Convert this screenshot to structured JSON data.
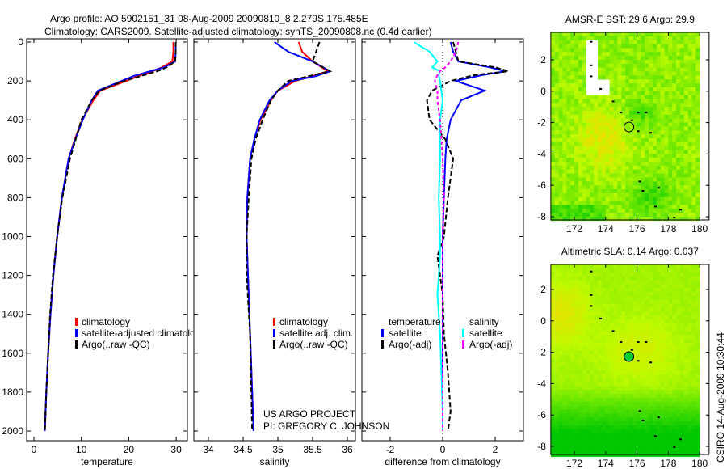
{
  "title": {
    "line1": "Argo profile: AO 5902151_31 08-Aug-2009 20090810_8 2.279S 175.485E",
    "line2": "Climatology: CARS2009. Satellite-adjusted climatology: synTS_20090808.nc (0.4d earlier)"
  },
  "credit": {
    "line1": "US ARGO PROJECT",
    "line2": "PI: GREGORY C. JOHNSON"
  },
  "stamp": "CSIRO 14-Aug-2009 10:30:44",
  "colors": {
    "climatology": "#ff0000",
    "satellite": "#0000ff",
    "argo": "#000000",
    "sal_satellite": "#00ffff",
    "sal_argo": "#ff00ff"
  },
  "chart_data": [
    {
      "type": "line",
      "xlabel": "temperature",
      "ylabel": "",
      "xlim": [
        -2,
        32
      ],
      "ylim": [
        2050,
        0
      ],
      "xticks": [
        "0",
        "10",
        "20",
        "30"
      ],
      "yticks": [
        "0",
        "200",
        "400",
        "600",
        "800",
        "1000",
        "1200",
        "1400",
        "1600",
        "1800",
        "2000"
      ],
      "legend": [
        "climatology",
        "satellite-adjusted climatolog",
        "Argo(..raw -QC)"
      ],
      "depth": [
        0,
        50,
        100,
        130,
        150,
        175,
        200,
        250,
        300,
        400,
        500,
        600,
        800,
        1000,
        1200,
        1400,
        1600,
        1800,
        2000
      ],
      "series": [
        {
          "name": "climatology",
          "values": [
            29.4,
            29.4,
            29.2,
            27,
            25,
            22,
            19.5,
            14,
            12.5,
            10.2,
            8.6,
            7.3,
            5.9,
            4.9,
            4.1,
            3.5,
            3.0,
            2.6,
            2.3
          ]
        },
        {
          "name": "satellite-adjusted climatology",
          "values": [
            29.9,
            29.9,
            29.8,
            27.5,
            24.5,
            21,
            18.5,
            13.5,
            12.2,
            10.3,
            8.7,
            7.3,
            5.9,
            4.9,
            4.1,
            3.5,
            3.0,
            2.6,
            2.3
          ]
        },
        {
          "name": "Argo",
          "values": [
            29.9,
            29.9,
            29.8,
            28,
            26,
            22.5,
            19,
            13.8,
            12.2,
            10,
            8.8,
            7.6,
            6.0,
            4.9,
            4.0,
            3.4,
            3.0,
            2.6,
            2.3
          ]
        }
      ]
    },
    {
      "type": "line",
      "xlabel": "salinity",
      "xlim": [
        33.8,
        36.1
      ],
      "ylim": [
        2050,
        0
      ],
      "xticks": [
        "34",
        "34.5",
        "35",
        "35.5",
        "36"
      ],
      "legend": [
        "climatology",
        "satellite adj. clim.",
        "Argo(..raw -QC)"
      ],
      "depth": [
        0,
        50,
        100,
        150,
        175,
        200,
        250,
        300,
        400,
        500,
        600,
        800,
        1000,
        1200,
        1500,
        2000
      ],
      "series": [
        {
          "name": "climatology",
          "values": [
            35.3,
            35.35,
            35.5,
            35.72,
            35.5,
            35.25,
            35.0,
            34.9,
            34.75,
            34.66,
            34.6,
            34.56,
            34.55,
            34.57,
            34.6,
            34.65
          ]
        },
        {
          "name": "satellite adj. clim.",
          "values": [
            34.95,
            35.15,
            35.5,
            35.75,
            35.55,
            35.2,
            35.0,
            34.88,
            34.74,
            34.66,
            34.6,
            34.56,
            34.55,
            34.57,
            34.6,
            34.65
          ]
        },
        {
          "name": "Argo",
          "values": [
            35.6,
            35.55,
            35.5,
            35.75,
            35.45,
            35.15,
            35.0,
            34.9,
            34.78,
            34.68,
            34.62,
            34.58,
            34.55,
            34.55,
            34.6,
            34.63
          ]
        }
      ]
    },
    {
      "type": "line",
      "xlabel": "difference from climatology",
      "xlim": [
        -3.2,
        3.2
      ],
      "ylim": [
        2050,
        0
      ],
      "xticks": [
        "-2",
        "0",
        "2"
      ],
      "legend": [
        "temperature",
        "satellite",
        "Argo(-adj)",
        "salinity",
        "satellite",
        "Argo(-adj)"
      ],
      "depth": [
        0,
        50,
        100,
        130,
        150,
        170,
        200,
        250,
        300,
        400,
        500,
        600,
        800,
        1000,
        1100,
        1300,
        1500,
        1700,
        1900,
        2000
      ],
      "series": [
        {
          "name": "temperature satellite",
          "values": [
            0.3,
            0.4,
            0.6,
            1.8,
            2.4,
            1.5,
            0.5,
            1.6,
            0.7,
            0.3,
            0.15,
            0.1,
            0.05,
            0,
            0,
            0,
            0,
            0,
            0,
            0
          ]
        },
        {
          "name": "temperature Argo(-adj)",
          "values": [
            0.4,
            0.5,
            0.6,
            2.0,
            2.5,
            1.2,
            0.3,
            -0.4,
            -0.6,
            -0.5,
            0.1,
            0.4,
            0.2,
            0.05,
            -0.2,
            0,
            0.05,
            0.2,
            0.3,
            0.2
          ]
        },
        {
          "name": "salinity satellite",
          "values": [
            -1.1,
            -0.5,
            -0.2,
            -0.4,
            -0.1,
            -0.15,
            -0.1,
            -0.05,
            0,
            -0.1,
            -0.1,
            -0.1,
            -0.15,
            -0.1,
            -0.1,
            -0.2,
            -0.1,
            -0.05,
            0,
            0
          ]
        },
        {
          "name": "salinity Argo(-adj)",
          "values": [
            0.6,
            0.5,
            0.3,
            0.1,
            -0.1,
            -0.2,
            -0.3,
            -0.2,
            -0.2,
            -0.1,
            -0.05,
            0,
            0.05,
            0,
            0,
            0,
            0,
            0,
            0,
            0
          ]
        }
      ]
    },
    {
      "type": "heatmap",
      "title": "AMSR-E SST: 29.6 Argo: 29.9",
      "xlim": [
        170.5,
        180.6
      ],
      "ylim": [
        -8.3,
        3.8
      ],
      "xticks": [
        "172",
        "174",
        "176",
        "178",
        "180"
      ],
      "yticks": [
        "2",
        "0",
        "-2",
        "-4",
        "-6",
        "-8"
      ],
      "marker": {
        "lon": 175.485,
        "lat": -2.279
      }
    },
    {
      "type": "heatmap",
      "title": "Altimetric SLA: 0.14 Argo: 0.037",
      "xlim": [
        170.5,
        180.6
      ],
      "ylim": [
        -8.3,
        3.8
      ],
      "xticks": [
        "172",
        "174",
        "176",
        "178",
        "180"
      ],
      "yticks": [
        "2",
        "0",
        "-2",
        "-4",
        "-6",
        "-8"
      ],
      "marker": {
        "lon": 175.485,
        "lat": -2.279
      }
    }
  ]
}
